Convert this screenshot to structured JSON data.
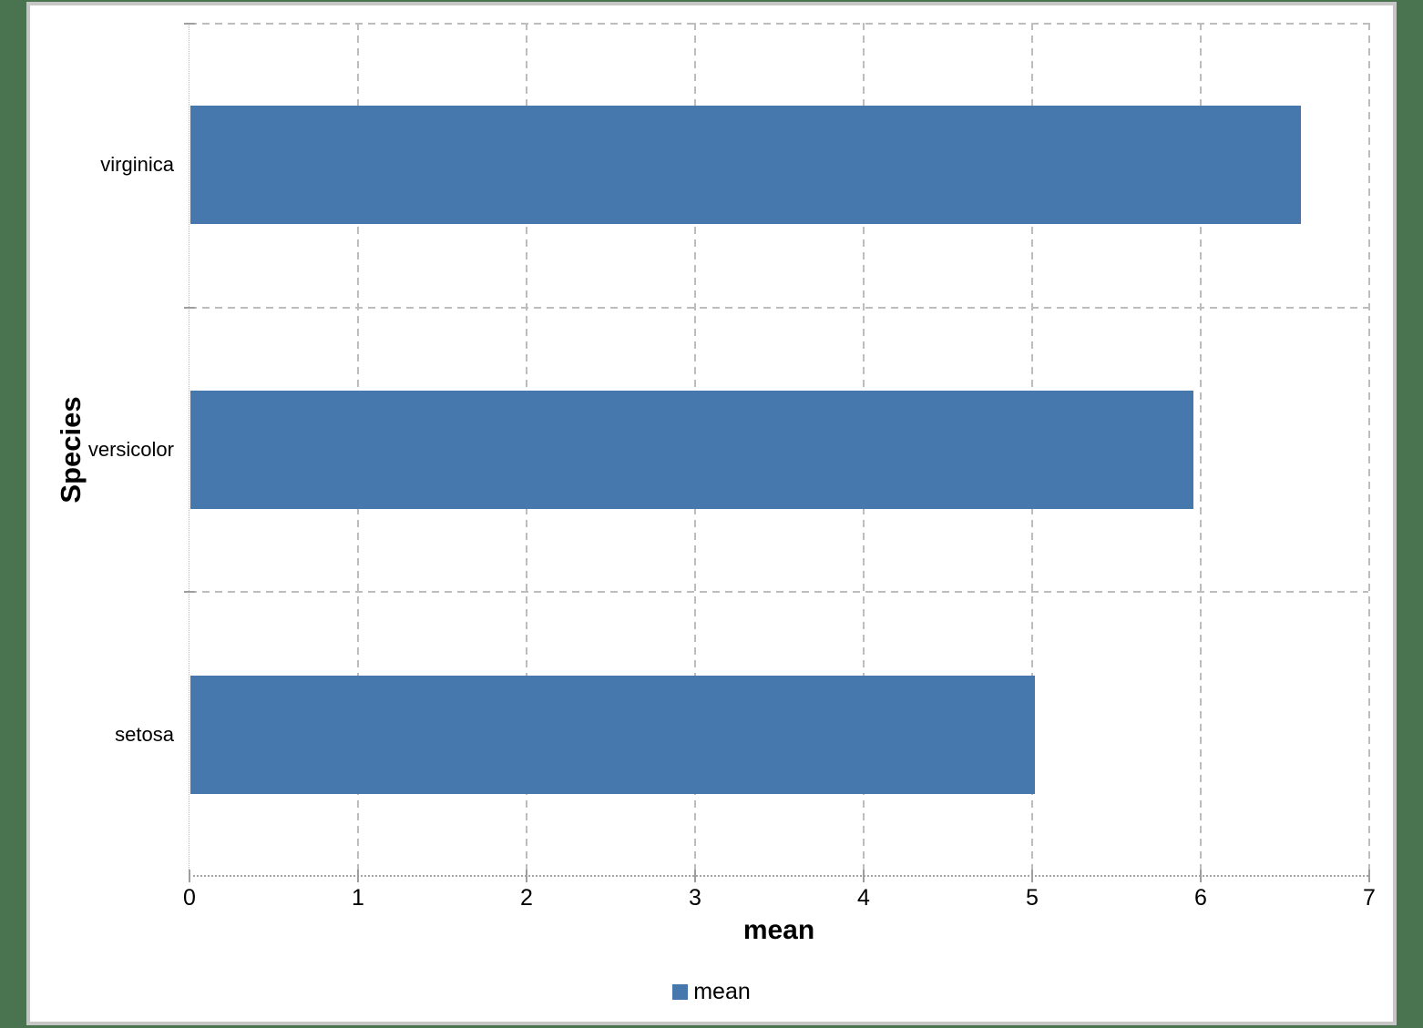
{
  "chart_data": {
    "type": "bar",
    "orientation": "horizontal",
    "title": "",
    "xlabel": "mean",
    "ylabel": "Species",
    "categories": [
      "setosa",
      "versicolor",
      "virginica"
    ],
    "categories_order": "bottom-to-top",
    "series": [
      {
        "name": "mean",
        "values": [
          5.01,
          5.95,
          6.59
        ],
        "color": "#4678ae"
      }
    ],
    "xlim": [
      0,
      7
    ],
    "xticks": [
      0,
      1,
      2,
      3,
      4,
      5,
      6,
      7
    ],
    "grid": true,
    "legend_position": "bottom"
  },
  "colors": {
    "page_background": "#4a7350",
    "canvas_background": "#ffffff",
    "canvas_border": "#c6c6c6",
    "gridline": "#bdbdbd",
    "bar": "#4678ae",
    "text": "#000000"
  }
}
